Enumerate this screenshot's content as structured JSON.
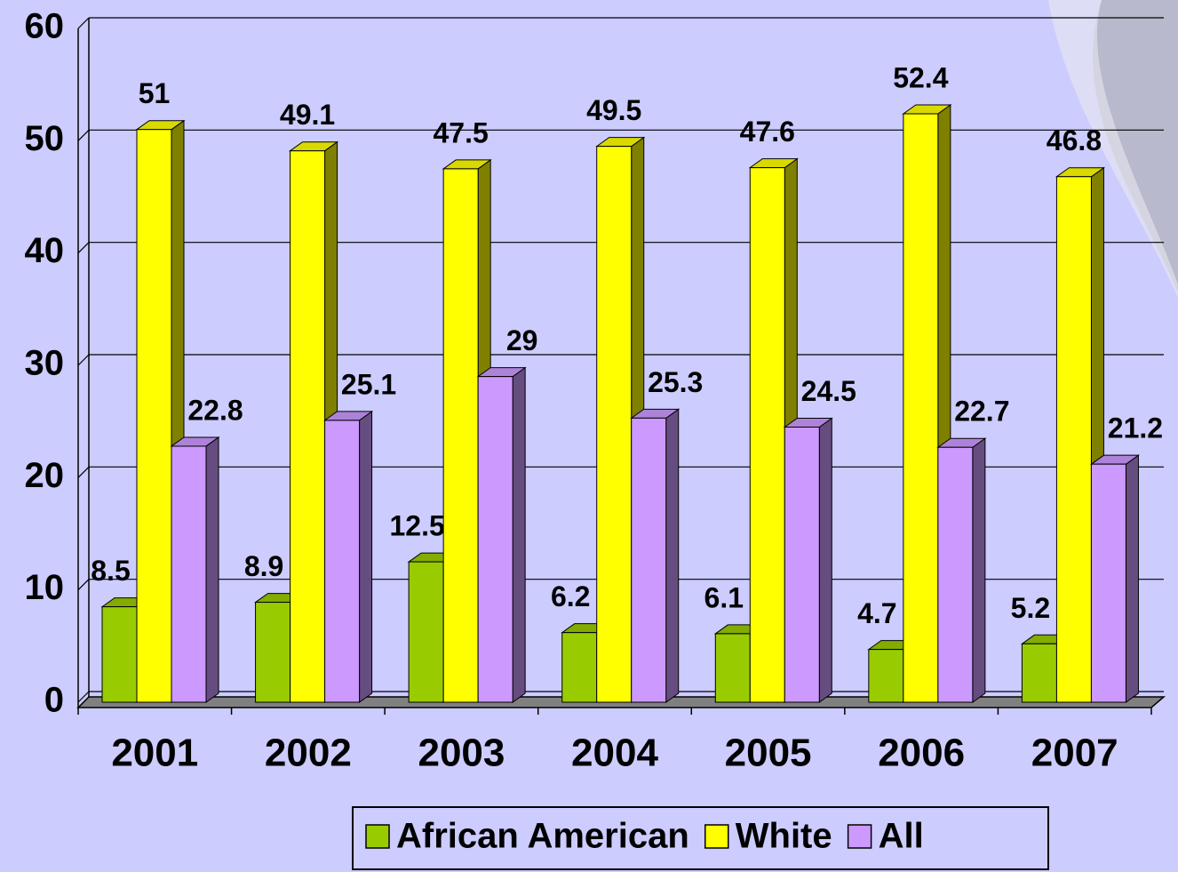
{
  "chart_data": {
    "type": "bar3d",
    "categories": [
      "2001",
      "2002",
      "2003",
      "2004",
      "2005",
      "2006",
      "2007"
    ],
    "series": [
      {
        "name": "African American",
        "color": "#99cc00",
        "values": [
          8.5,
          8.9,
          12.5,
          6.2,
          6.1,
          4.7,
          5.2
        ]
      },
      {
        "name": "White",
        "color": "#ffff00",
        "values": [
          51,
          49.1,
          47.5,
          49.5,
          47.6,
          52.4,
          46.8
        ]
      },
      {
        "name": "All",
        "color": "#cc99ff",
        "values": [
          22.8,
          25.1,
          29,
          25.3,
          24.5,
          22.7,
          21.2
        ]
      }
    ],
    "ylim": [
      0,
      60
    ],
    "yticks": [
      0,
      10,
      20,
      30,
      40,
      50,
      60
    ],
    "grid": true,
    "legend": "bottom"
  }
}
